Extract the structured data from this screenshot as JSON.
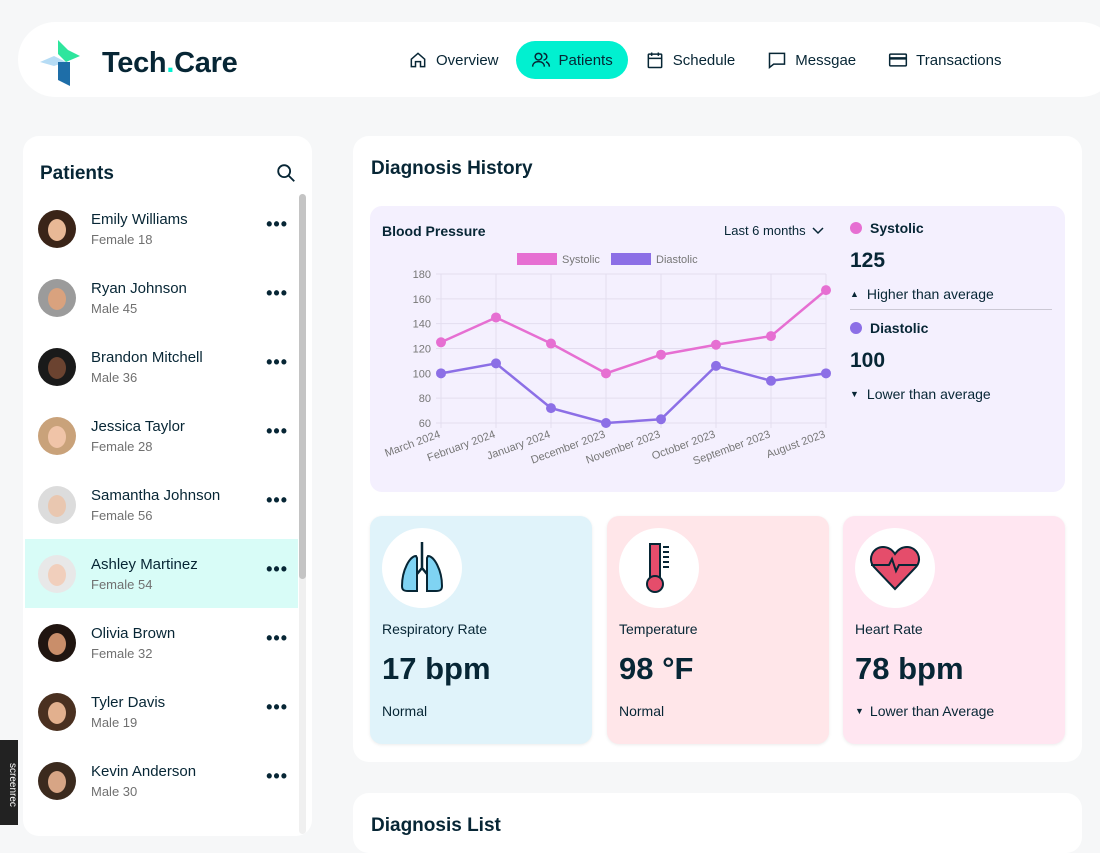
{
  "header": {
    "logo_word": "Tech",
    "logo_word2": "Care",
    "nav": [
      {
        "label": "Overview",
        "icon": "home-icon"
      },
      {
        "label": "Patients",
        "icon": "users-icon",
        "active": true
      },
      {
        "label": "Schedule",
        "icon": "calendar-icon"
      },
      {
        "label": "Messgae",
        "icon": "message-icon"
      },
      {
        "label": "Transactions",
        "icon": "credit-card-icon"
      }
    ]
  },
  "sidebar": {
    "title": "Patients",
    "patients": [
      {
        "name": "Emily Williams",
        "meta": "Female 18"
      },
      {
        "name": "Ryan Johnson",
        "meta": "Male 45"
      },
      {
        "name": "Brandon Mitchell",
        "meta": "Male 36"
      },
      {
        "name": "Jessica Taylor",
        "meta": "Female 28"
      },
      {
        "name": "Samantha Johnson",
        "meta": "Female 56"
      },
      {
        "name": "Ashley Martinez",
        "meta": "Female 54",
        "active": true
      },
      {
        "name": "Olivia Brown",
        "meta": "Female 32"
      },
      {
        "name": "Tyler Davis",
        "meta": "Male 19"
      },
      {
        "name": "Kevin Anderson",
        "meta": "Male 30"
      }
    ]
  },
  "diagnosis": {
    "title": "Diagnosis History",
    "bp": {
      "title": "Blood Pressure",
      "range": "Last 6 months",
      "systolic": {
        "label": "Systolic",
        "value": "125",
        "note": "Higher than average",
        "trend": "up"
      },
      "diastolic": {
        "label": "Diastolic",
        "value": "100",
        "note": "Lower than average",
        "trend": "down"
      }
    },
    "vitals": [
      {
        "label": "Respiratory Rate",
        "value": "17 bpm",
        "note": "Normal",
        "bg": "#e0f3fa",
        "icon": "lungs-icon"
      },
      {
        "label": "Temperature",
        "value": "98 °F",
        "note": "Normal",
        "bg": "#ffe6e9",
        "icon": "thermometer-icon"
      },
      {
        "label": "Heart Rate",
        "value": "78 bpm",
        "note": "Lower than Average",
        "bg": "#ffe6f1",
        "icon": "heart-icon"
      }
    ]
  },
  "diagnosis_list": {
    "title": "Diagnosis List"
  },
  "watermark": "screenrec",
  "chart_data": {
    "type": "line",
    "categories": [
      "March 2024",
      "February 2024",
      "January 2024",
      "December 2023",
      "November 2023",
      "October 2023",
      "September 2023",
      "August 2023"
    ],
    "series": [
      {
        "name": "Systolic",
        "color": "#e66fd2",
        "values": [
          125,
          145,
          124,
          100,
          115,
          123,
          130,
          167
        ]
      },
      {
        "name": "Diastolic",
        "color": "#8c6fe6",
        "values": [
          100,
          108,
          72,
          60,
          63,
          106,
          94,
          100
        ]
      }
    ],
    "ylim": [
      60,
      180
    ],
    "yticks": [
      60,
      80,
      100,
      120,
      140,
      160,
      180
    ],
    "grid": true,
    "legend": "top"
  }
}
